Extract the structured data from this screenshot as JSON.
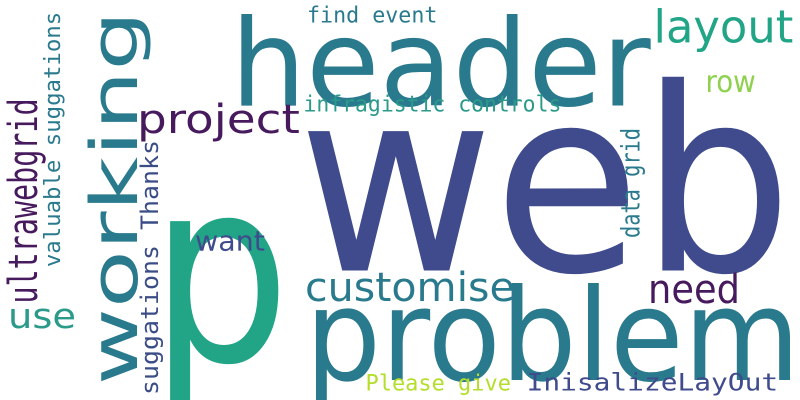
{
  "words": {
    "web": {
      "text": "web",
      "color": "#3f4b8c"
    },
    "p": {
      "text": "p",
      "color": "#21a586"
    },
    "header": {
      "text": "header",
      "color": "#2a7a8e"
    },
    "problem": {
      "text": "problem",
      "color": "#2a7a8e"
    },
    "working": {
      "text": "working",
      "color": "#2a7a8e"
    },
    "customise": {
      "text": "customise",
      "color": "#2a7a8e"
    },
    "project": {
      "text": "project",
      "color": "#471a5e"
    },
    "layout": {
      "text": "layout",
      "color": "#21a586"
    },
    "need": {
      "text": "need",
      "color": "#471a5e"
    },
    "use": {
      "text": "use",
      "color": "#2a9a8a"
    },
    "want": {
      "text": "want",
      "color": "#3f4b8c"
    },
    "row": {
      "text": "row",
      "color": "#8fd14f"
    },
    "ultrawebgrid": {
      "text": "ultrawebgrid",
      "color": "#471a5e"
    },
    "valuable_suggations": {
      "text": "valuable suggations",
      "color": "#2a7a8e"
    },
    "suggations_thanks": {
      "text": "suggations Thanks",
      "color": "#3b4d87"
    },
    "data_grid": {
      "text": "data grid",
      "color": "#2a7a8e"
    },
    "infragistic_controls": {
      "text": "infragistic controls",
      "color": "#2a9a8a"
    },
    "find_event": {
      "text": "find event",
      "color": "#2a7a8e"
    },
    "please_give": {
      "text": "Please give",
      "color": "#b5de2b"
    },
    "inisalize_layout": {
      "text": "InisalizeLayOut",
      "color": "#3f4b8c"
    }
  }
}
